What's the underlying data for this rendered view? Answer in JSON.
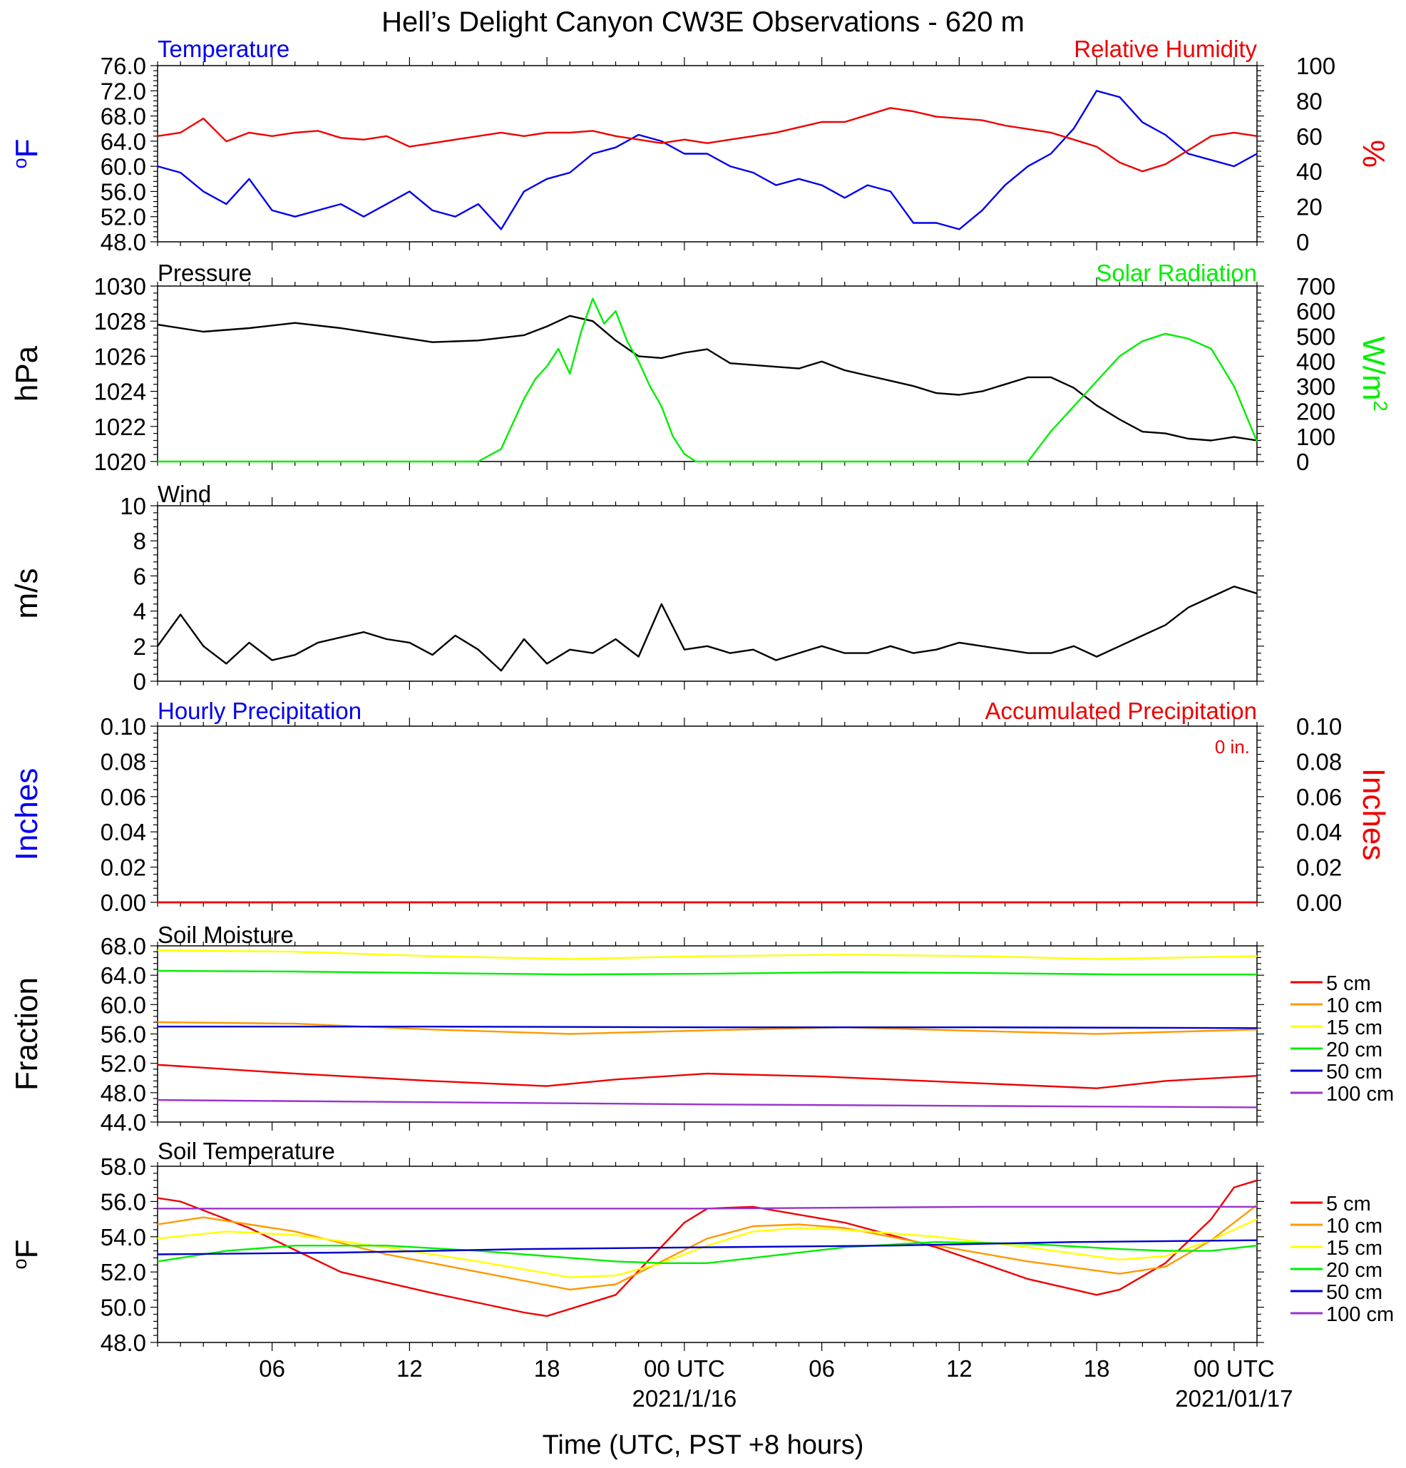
{
  "title": "Hell’s Delight Canyon CW3E Observations - 620 m",
  "colors": {
    "blue": "#0000ee",
    "red": "#ee0000",
    "green": "#00ee00",
    "black": "#000000",
    "orange": "#ff9900",
    "yellow": "#ffff00",
    "purple": "#9933cc",
    "darkblue": "#0000cc"
  },
  "time_axis": {
    "xlabel": "Time (UTC, PST +8 hours)",
    "start_hour": 0,
    "end_hour": 48,
    "ticks": [
      {
        "hour": 5,
        "label": "06"
      },
      {
        "hour": 11,
        "label": "12"
      },
      {
        "hour": 17,
        "label": "18"
      },
      {
        "hour": 23,
        "label": "00 UTC",
        "sublabel": "2021/1/16"
      },
      {
        "hour": 29,
        "label": "06"
      },
      {
        "hour": 35,
        "label": "12"
      },
      {
        "hour": 41,
        "label": "18"
      },
      {
        "hour": 47,
        "label": "00 UTC",
        "sublabel": "2021/01/17"
      }
    ]
  },
  "chart_data": [
    {
      "id": "temp_rh",
      "type": "line",
      "left_title": "Temperature",
      "right_title": "Relative Humidity",
      "ylabel_left": "oF",
      "ylabel_right": "%",
      "ylim_left": [
        48,
        76
      ],
      "yticks_left": [
        "76.0",
        "72.0",
        "68.0",
        "64.0",
        "60.0",
        "56.0",
        "52.0",
        "48.0"
      ],
      "ylim_right": [
        0,
        100
      ],
      "yticks_right": [
        "100",
        "80",
        "60",
        "40",
        "20",
        "0"
      ],
      "series": [
        {
          "axis": "left",
          "color": "#0000ee",
          "x": [
            0,
            1,
            2,
            3,
            4,
            5,
            6,
            7,
            8,
            9,
            10,
            11,
            12,
            13,
            14,
            15,
            16,
            17,
            18,
            19,
            20,
            21,
            22,
            23,
            24,
            25,
            26,
            27,
            28,
            29,
            30,
            31,
            32,
            33,
            34,
            35,
            36,
            37,
            38,
            39,
            40,
            41,
            42,
            43,
            44,
            45,
            46,
            47,
            48
          ],
          "y": [
            60,
            59,
            56,
            54,
            58,
            53,
            52,
            53,
            54,
            52,
            54,
            56,
            53,
            52,
            54,
            50,
            56,
            58,
            59,
            62,
            63,
            65,
            64,
            62,
            62,
            60,
            59,
            57,
            58,
            57,
            55,
            57,
            56,
            51,
            51,
            50,
            53,
            57,
            60,
            62,
            66,
            72,
            71,
            67,
            65,
            62,
            61,
            60,
            62
          ]
        },
        {
          "axis": "right",
          "color": "#ee0000",
          "x": [
            0,
            1,
            2,
            3,
            4,
            5,
            6,
            7,
            8,
            9,
            10,
            11,
            12,
            13,
            14,
            15,
            16,
            17,
            18,
            19,
            20,
            21,
            22,
            23,
            24,
            25,
            26,
            27,
            28,
            29,
            30,
            31,
            32,
            33,
            34,
            35,
            36,
            37,
            38,
            39,
            40,
            41,
            42,
            43,
            44,
            45,
            46,
            47,
            48
          ],
          "y": [
            60,
            62,
            70,
            57,
            62,
            60,
            62,
            63,
            59,
            58,
            60,
            54,
            56,
            58,
            60,
            62,
            60,
            62,
            62,
            63,
            60,
            58,
            56,
            58,
            56,
            58,
            60,
            62,
            65,
            68,
            68,
            72,
            76,
            74,
            71,
            70,
            69,
            66,
            64,
            62,
            58,
            54,
            45,
            40,
            44,
            52,
            60,
            62,
            60
          ]
        }
      ]
    },
    {
      "id": "pressure_solar",
      "type": "line",
      "left_title": "Pressure",
      "right_title": "Solar Radiation",
      "ylabel_left": "hPa",
      "ylabel_right": "W/m2",
      "ylim_left": [
        1020,
        1030
      ],
      "yticks_left": [
        "1030",
        "1028",
        "1026",
        "1024",
        "1022",
        "1020"
      ],
      "ylim_right": [
        0,
        700
      ],
      "yticks_right": [
        "700",
        "600",
        "500",
        "400",
        "300",
        "200",
        "100",
        "0"
      ],
      "series": [
        {
          "axis": "left",
          "color": "#000000",
          "x": [
            0,
            2,
            4,
            6,
            8,
            10,
            12,
            14,
            16,
            17,
            18,
            19,
            20,
            21,
            22,
            23,
            24,
            25,
            26,
            27,
            28,
            29,
            30,
            31,
            32,
            33,
            34,
            35,
            36,
            37,
            38,
            39,
            40,
            41,
            42,
            43,
            44,
            45,
            46,
            47,
            48
          ],
          "y": [
            1027.8,
            1027.4,
            1027.6,
            1027.9,
            1027.6,
            1027.2,
            1026.8,
            1026.9,
            1027.2,
            1027.7,
            1028.3,
            1028.0,
            1026.9,
            1026.0,
            1025.9,
            1026.2,
            1026.4,
            1025.6,
            1025.5,
            1025.4,
            1025.3,
            1025.7,
            1025.2,
            1024.9,
            1024.6,
            1024.3,
            1023.9,
            1023.8,
            1024.0,
            1024.4,
            1024.8,
            1024.8,
            1024.2,
            1023.2,
            1022.4,
            1021.7,
            1021.6,
            1021.3,
            1021.2,
            1021.4,
            1021.2
          ]
        },
        {
          "axis": "right",
          "color": "#00ee00",
          "x": [
            0,
            14,
            15,
            15.5,
            16,
            16.5,
            17,
            17.5,
            18,
            18.5,
            19,
            19.5,
            20,
            20.5,
            21,
            21.5,
            22,
            22.5,
            23,
            23.5,
            24,
            38,
            39,
            40,
            41,
            42,
            43,
            44,
            45,
            46,
            47,
            48
          ],
          "y": [
            0,
            0,
            50,
            150,
            250,
            330,
            380,
            450,
            350,
            520,
            650,
            550,
            600,
            480,
            400,
            300,
            220,
            100,
            30,
            0,
            0,
            0,
            120,
            220,
            320,
            420,
            480,
            510,
            490,
            450,
            300,
            80
          ]
        }
      ]
    },
    {
      "id": "wind",
      "type": "line",
      "left_title": "Wind",
      "ylabel_left": "m/s",
      "ylim_left": [
        0,
        10
      ],
      "yticks_left": [
        "10",
        "8",
        "6",
        "4",
        "2",
        "0"
      ],
      "series": [
        {
          "axis": "left",
          "color": "#000000",
          "x": [
            0,
            1,
            2,
            3,
            4,
            5,
            6,
            7,
            8,
            9,
            10,
            11,
            12,
            13,
            14,
            15,
            16,
            17,
            18,
            19,
            20,
            21,
            22,
            23,
            24,
            25,
            26,
            27,
            28,
            29,
            30,
            31,
            32,
            33,
            34,
            35,
            36,
            37,
            38,
            39,
            40,
            41,
            42,
            43,
            44,
            45,
            46,
            47,
            48
          ],
          "y": [
            2.0,
            3.8,
            2.0,
            1.0,
            2.2,
            1.2,
            1.5,
            2.2,
            2.5,
            2.8,
            2.4,
            2.2,
            1.5,
            2.6,
            1.8,
            0.6,
            2.4,
            1.0,
            1.8,
            1.6,
            2.4,
            1.4,
            4.4,
            1.8,
            2.0,
            1.6,
            1.8,
            1.2,
            1.6,
            2.0,
            1.6,
            1.6,
            2.0,
            1.6,
            1.8,
            2.2,
            2.0,
            1.8,
            1.6,
            1.6,
            2.0,
            1.4,
            2.0,
            2.6,
            3.2,
            4.2,
            4.8,
            5.4,
            5.0
          ]
        }
      ]
    },
    {
      "id": "precip",
      "type": "line",
      "left_title": "Hourly Precipitation",
      "right_title": "Accumulated Precipitation",
      "annotation": "0 in.",
      "ylabel_left": "Inches",
      "ylabel_right": "Inches",
      "ylim_left": [
        0,
        0.1
      ],
      "yticks_left": [
        "0.10",
        "0.08",
        "0.06",
        "0.04",
        "0.02",
        "0.00"
      ],
      "ylim_right": [
        0,
        0.1
      ],
      "yticks_right": [
        "0.10",
        "0.08",
        "0.06",
        "0.04",
        "0.02",
        "0.00"
      ],
      "series": [
        {
          "axis": "left",
          "color": "#0000ee",
          "x": [
            0,
            48
          ],
          "y": [
            0,
            0
          ]
        },
        {
          "axis": "left",
          "color": "#ee0000",
          "x": [
            0,
            48
          ],
          "y": [
            0,
            0
          ]
        }
      ]
    },
    {
      "id": "soil_moisture",
      "type": "line",
      "left_title": "Soil Moisture",
      "ylabel_left": "Fraction",
      "ylim_left": [
        44,
        68
      ],
      "yticks_left": [
        "68.0",
        "64.0",
        "60.0",
        "56.0",
        "52.0",
        "48.0",
        "44.0"
      ],
      "series": [
        {
          "name": "5 cm",
          "color": "#ee0000",
          "x": [
            0,
            6,
            12,
            17,
            20,
            24,
            29,
            35,
            41,
            44,
            48
          ],
          "y": [
            51.8,
            50.6,
            49.6,
            48.9,
            49.8,
            50.6,
            50.2,
            49.4,
            48.6,
            49.6,
            50.3
          ]
        },
        {
          "name": "10 cm",
          "color": "#ff9900",
          "x": [
            0,
            6,
            12,
            18,
            24,
            30,
            36,
            41,
            48
          ],
          "y": [
            57.6,
            57.4,
            56.6,
            56.0,
            56.5,
            56.9,
            56.4,
            56.0,
            56.6
          ]
        },
        {
          "name": "15 cm",
          "color": "#ffff00",
          "x": [
            0,
            6,
            12,
            18,
            24,
            30,
            36,
            41,
            48
          ],
          "y": [
            67.4,
            67.2,
            66.6,
            66.2,
            66.6,
            66.8,
            66.6,
            66.2,
            66.6
          ]
        },
        {
          "name": "20 cm",
          "color": "#00ee00",
          "x": [
            0,
            6,
            12,
            18,
            24,
            30,
            36,
            42,
            48
          ],
          "y": [
            64.6,
            64.5,
            64.3,
            64.1,
            64.2,
            64.4,
            64.3,
            64.1,
            64.1
          ]
        },
        {
          "name": "50 cm",
          "color": "#0000cc",
          "x": [
            0,
            12,
            24,
            36,
            48
          ],
          "y": [
            57.0,
            57.0,
            56.9,
            56.9,
            56.8
          ]
        },
        {
          "name": "100 cm",
          "color": "#9933cc",
          "x": [
            0,
            12,
            24,
            36,
            48
          ],
          "y": [
            47.0,
            46.7,
            46.4,
            46.2,
            46.0
          ]
        }
      ]
    },
    {
      "id": "soil_temp",
      "type": "line",
      "left_title": "Soil Temperature",
      "ylabel_left": "oF",
      "ylim_left": [
        48,
        58
      ],
      "yticks_left": [
        "58.0",
        "56.0",
        "54.0",
        "52.0",
        "50.0",
        "48.0"
      ],
      "series": [
        {
          "name": "5 cm",
          "color": "#ee0000",
          "x": [
            0,
            1,
            4,
            8,
            12,
            16,
            17,
            20,
            23,
            24,
            26,
            30,
            34,
            38,
            41,
            42,
            44,
            46,
            47,
            48
          ],
          "y": [
            56.2,
            56.0,
            54.5,
            52.0,
            50.8,
            49.7,
            49.5,
            50.7,
            54.8,
            55.6,
            55.7,
            54.8,
            53.4,
            51.6,
            50.7,
            51.0,
            52.5,
            55.0,
            56.8,
            57.2
          ]
        },
        {
          "name": "10 cm",
          "color": "#ff9900",
          "x": [
            0,
            2,
            6,
            10,
            14,
            18,
            20,
            22,
            24,
            26,
            28,
            30,
            34,
            38,
            42,
            44,
            46,
            48
          ],
          "y": [
            54.7,
            55.1,
            54.3,
            53.0,
            52.0,
            51.0,
            51.3,
            52.6,
            53.9,
            54.6,
            54.7,
            54.5,
            53.5,
            52.6,
            51.9,
            52.3,
            53.8,
            55.8
          ]
        },
        {
          "name": "15 cm",
          "color": "#ffff00",
          "x": [
            0,
            3,
            6,
            10,
            14,
            18,
            20,
            22,
            24,
            26,
            28,
            30,
            34,
            38,
            42,
            44,
            46,
            48
          ],
          "y": [
            53.9,
            54.3,
            54.1,
            53.4,
            52.6,
            51.7,
            51.8,
            52.5,
            53.5,
            54.3,
            54.5,
            54.4,
            54.0,
            53.4,
            52.7,
            52.9,
            53.8,
            55.0
          ]
        },
        {
          "name": "20 cm",
          "color": "#00ee00",
          "x": [
            0,
            3,
            6,
            10,
            14,
            18,
            20,
            22,
            24,
            26,
            30,
            34,
            38,
            42,
            44,
            46,
            48
          ],
          "y": [
            52.6,
            53.2,
            53.5,
            53.5,
            53.2,
            52.8,
            52.6,
            52.5,
            52.5,
            52.8,
            53.4,
            53.7,
            53.6,
            53.3,
            53.2,
            53.2,
            53.5
          ]
        },
        {
          "name": "50 cm",
          "color": "#0000cc",
          "x": [
            0,
            8,
            16,
            24,
            32,
            40,
            48
          ],
          "y": [
            53.0,
            53.1,
            53.3,
            53.4,
            53.5,
            53.7,
            53.8
          ]
        },
        {
          "name": "100 cm",
          "color": "#9933cc",
          "x": [
            0,
            12,
            24,
            36,
            48
          ],
          "y": [
            55.6,
            55.6,
            55.6,
            55.7,
            55.7
          ]
        }
      ]
    }
  ],
  "legend": [
    "5 cm",
    "10 cm",
    "15 cm",
    "20 cm",
    "50 cm",
    "100 cm"
  ]
}
